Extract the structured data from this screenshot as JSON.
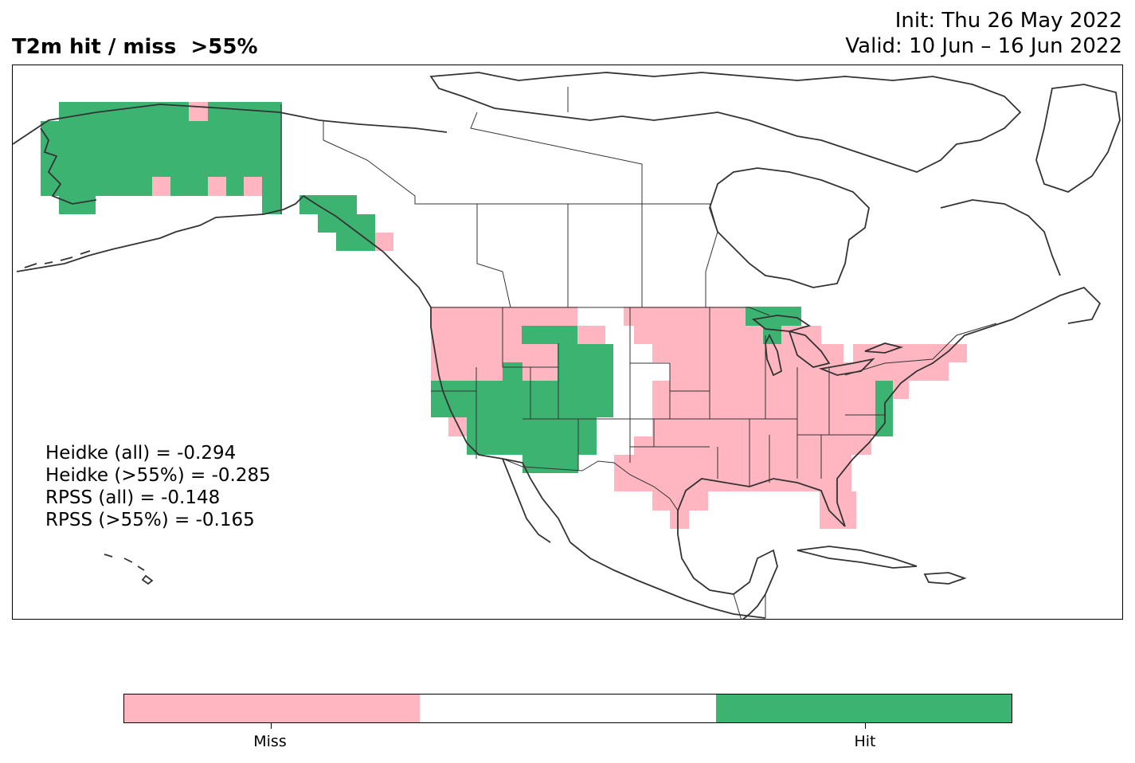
{
  "header": {
    "title": "T2m hit / miss  >55%",
    "init": "Init: Thu 26 May 2022",
    "valid": "Valid: 10 Jun – 16 Jun 2022"
  },
  "scores": [
    "Heidke (all) = -0.294",
    "Heidke (>55%) = -0.285",
    "RPSS (all) = -0.148",
    "RPSS (>55%) = -0.165"
  ],
  "colorbar": {
    "segments": [
      {
        "name": "Miss",
        "color": "#ffb6c1"
      },
      {
        "name": "",
        "color": "#ffffff"
      },
      {
        "name": "Hit",
        "color": "#3cb371"
      }
    ],
    "labels": [
      "Miss",
      "Hit"
    ]
  },
  "colors": {
    "miss": "#ffb6c1",
    "hit": "#3cb371",
    "coast": "#333333"
  }
}
